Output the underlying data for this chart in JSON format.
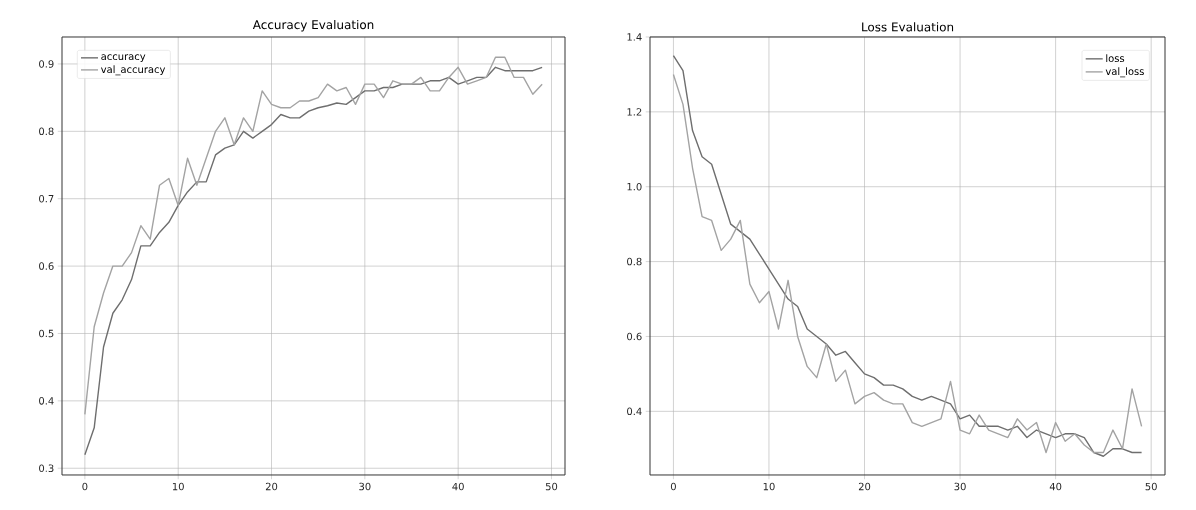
{
  "chart_data": [
    {
      "type": "line",
      "title": "Accuracy Evaluation",
      "x": [
        0,
        1,
        2,
        3,
        4,
        5,
        6,
        7,
        8,
        9,
        10,
        11,
        12,
        13,
        14,
        15,
        16,
        17,
        18,
        19,
        20,
        21,
        22,
        23,
        24,
        25,
        26,
        27,
        28,
        29,
        30,
        31,
        32,
        33,
        34,
        35,
        36,
        37,
        38,
        39,
        40,
        41,
        42,
        43,
        44,
        45,
        46,
        47,
        48,
        49
      ],
      "series": [
        {
          "name": "accuracy",
          "color": "#6e6e6e",
          "values": [
            0.32,
            0.36,
            0.48,
            0.53,
            0.55,
            0.58,
            0.63,
            0.63,
            0.65,
            0.665,
            0.69,
            0.71,
            0.725,
            0.725,
            0.765,
            0.775,
            0.78,
            0.8,
            0.79,
            0.8,
            0.81,
            0.825,
            0.82,
            0.82,
            0.83,
            0.835,
            0.838,
            0.842,
            0.84,
            0.85,
            0.86,
            0.86,
            0.865,
            0.865,
            0.87,
            0.87,
            0.87,
            0.875,
            0.875,
            0.88,
            0.87,
            0.875,
            0.88,
            0.88,
            0.895,
            0.89,
            0.89,
            0.89,
            0.89,
            0.895
          ]
        },
        {
          "name": "val_accuracy",
          "color": "#a3a3a3",
          "values": [
            0.38,
            0.51,
            0.56,
            0.6,
            0.6,
            0.62,
            0.66,
            0.64,
            0.72,
            0.73,
            0.69,
            0.76,
            0.72,
            0.76,
            0.8,
            0.82,
            0.78,
            0.82,
            0.8,
            0.86,
            0.84,
            0.835,
            0.835,
            0.845,
            0.845,
            0.85,
            0.87,
            0.86,
            0.865,
            0.84,
            0.87,
            0.87,
            0.85,
            0.875,
            0.87,
            0.87,
            0.88,
            0.86,
            0.86,
            0.88,
            0.895,
            0.87,
            0.875,
            0.88,
            0.91,
            0.91,
            0.88,
            0.88,
            0.855,
            0.87
          ]
        }
      ],
      "xlim": [
        -2.45,
        51.45
      ],
      "ylim": [
        0.29,
        0.94
      ],
      "xticks": [
        0,
        10,
        20,
        30,
        40,
        50
      ],
      "yticks": [
        0.3,
        0.4,
        0.5,
        0.6,
        0.7,
        0.8,
        0.9
      ],
      "grid": true,
      "legend": "top left"
    },
    {
      "type": "line",
      "title": "Loss Evaluation",
      "x": [
        0,
        1,
        2,
        3,
        4,
        5,
        6,
        7,
        8,
        9,
        10,
        11,
        12,
        13,
        14,
        15,
        16,
        17,
        18,
        19,
        20,
        21,
        22,
        23,
        24,
        25,
        26,
        27,
        28,
        29,
        30,
        31,
        32,
        33,
        34,
        35,
        36,
        37,
        38,
        39,
        40,
        41,
        42,
        43,
        44,
        45,
        46,
        47,
        48,
        49
      ],
      "series": [
        {
          "name": "loss",
          "color": "#6e6e6e",
          "values": [
            1.35,
            1.31,
            1.15,
            1.08,
            1.06,
            0.98,
            0.9,
            0.88,
            0.86,
            0.82,
            0.78,
            0.74,
            0.7,
            0.68,
            0.62,
            0.6,
            0.58,
            0.55,
            0.56,
            0.53,
            0.5,
            0.49,
            0.47,
            0.47,
            0.46,
            0.44,
            0.43,
            0.44,
            0.43,
            0.42,
            0.38,
            0.39,
            0.36,
            0.36,
            0.36,
            0.35,
            0.36,
            0.33,
            0.35,
            0.34,
            0.33,
            0.34,
            0.34,
            0.33,
            0.29,
            0.28,
            0.3,
            0.3,
            0.29,
            0.29
          ]
        },
        {
          "name": "val_loss",
          "color": "#a3a3a3",
          "values": [
            1.3,
            1.22,
            1.05,
            0.92,
            0.91,
            0.83,
            0.86,
            0.91,
            0.74,
            0.69,
            0.72,
            0.62,
            0.75,
            0.6,
            0.52,
            0.49,
            0.58,
            0.48,
            0.51,
            0.42,
            0.44,
            0.45,
            0.43,
            0.42,
            0.42,
            0.37,
            0.36,
            0.37,
            0.38,
            0.48,
            0.35,
            0.34,
            0.39,
            0.35,
            0.34,
            0.33,
            0.38,
            0.35,
            0.37,
            0.29,
            0.37,
            0.32,
            0.34,
            0.31,
            0.29,
            0.29,
            0.35,
            0.3,
            0.46,
            0.36
          ]
        }
      ],
      "xlim": [
        -2.45,
        51.45
      ],
      "ylim": [
        0.23,
        1.4
      ],
      "xticks": [
        0,
        10,
        20,
        30,
        40,
        50
      ],
      "yticks": [
        0.4,
        0.6,
        0.8,
        {
          "value": 1.0,
          "label": "1.0"
        },
        1.2,
        1.4
      ],
      "grid": true,
      "legend": "top right"
    }
  ]
}
